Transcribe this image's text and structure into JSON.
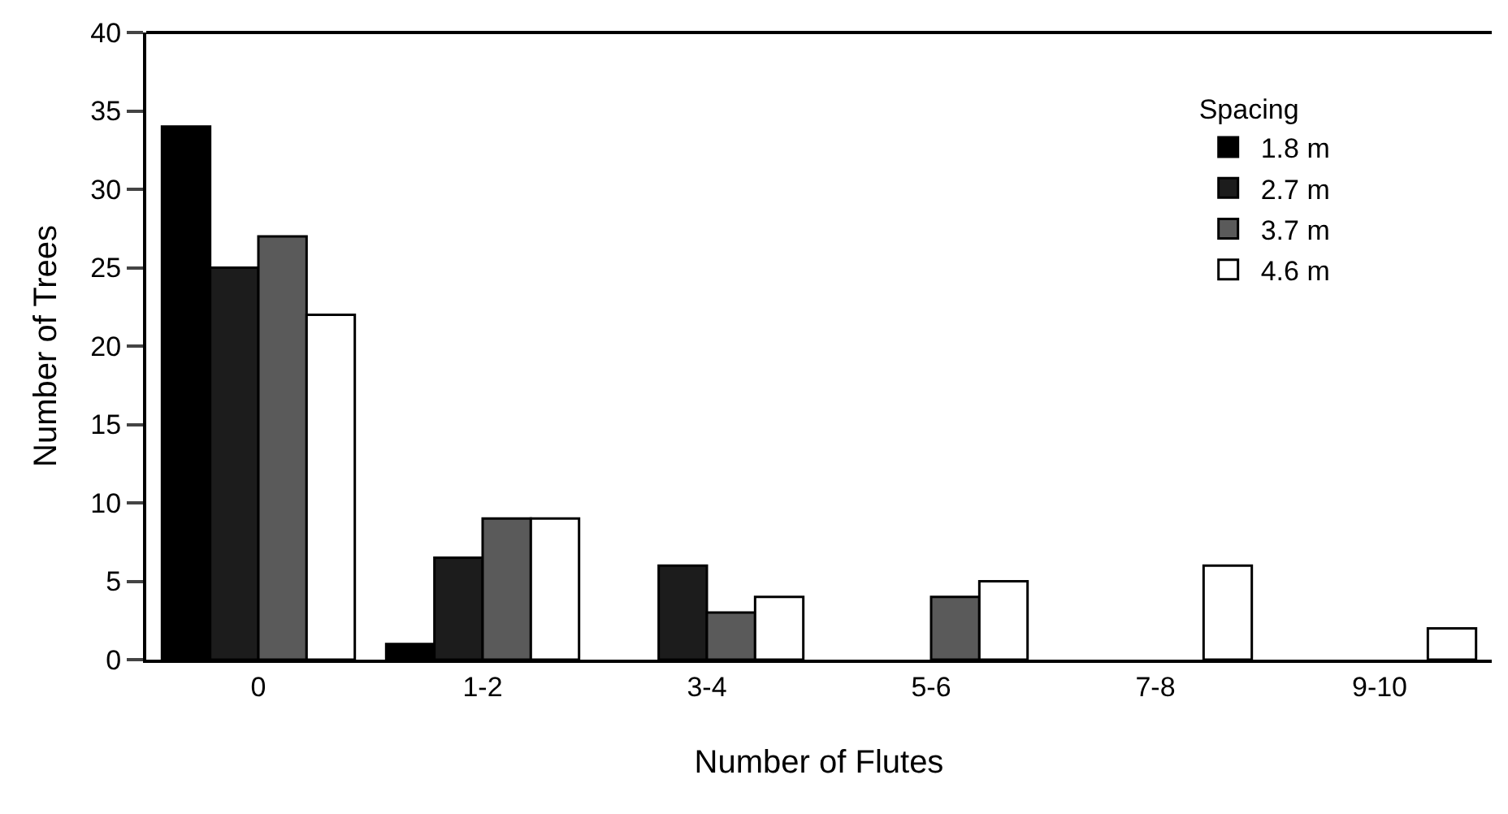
{
  "chart_data": {
    "type": "bar",
    "xlabel": "Number of Flutes",
    "ylabel": "Number of Trees",
    "legend_title": "Spacing",
    "categories": [
      "0",
      "1-2",
      "3-4",
      "5-6",
      "7-8",
      "9-10"
    ],
    "series": [
      {
        "name": "1.8 m",
        "color": "#000000",
        "values": [
          34,
          1,
          null,
          null,
          null,
          null
        ]
      },
      {
        "name": "2.7 m",
        "color": "#1c1c1c",
        "values": [
          25,
          6.5,
          6,
          null,
          null,
          null
        ]
      },
      {
        "name": "3.7 m",
        "color": "#5a5a5a",
        "values": [
          27,
          9,
          3,
          4,
          null,
          null
        ]
      },
      {
        "name": "4.6 m",
        "color": "#ffffff",
        "values": [
          22,
          9,
          4,
          5,
          6,
          2
        ]
      }
    ],
    "ylim": [
      0,
      40
    ],
    "yticks": [
      0,
      5,
      10,
      15,
      20,
      25,
      30,
      35,
      40
    ],
    "grid": false,
    "legend": "top right"
  }
}
